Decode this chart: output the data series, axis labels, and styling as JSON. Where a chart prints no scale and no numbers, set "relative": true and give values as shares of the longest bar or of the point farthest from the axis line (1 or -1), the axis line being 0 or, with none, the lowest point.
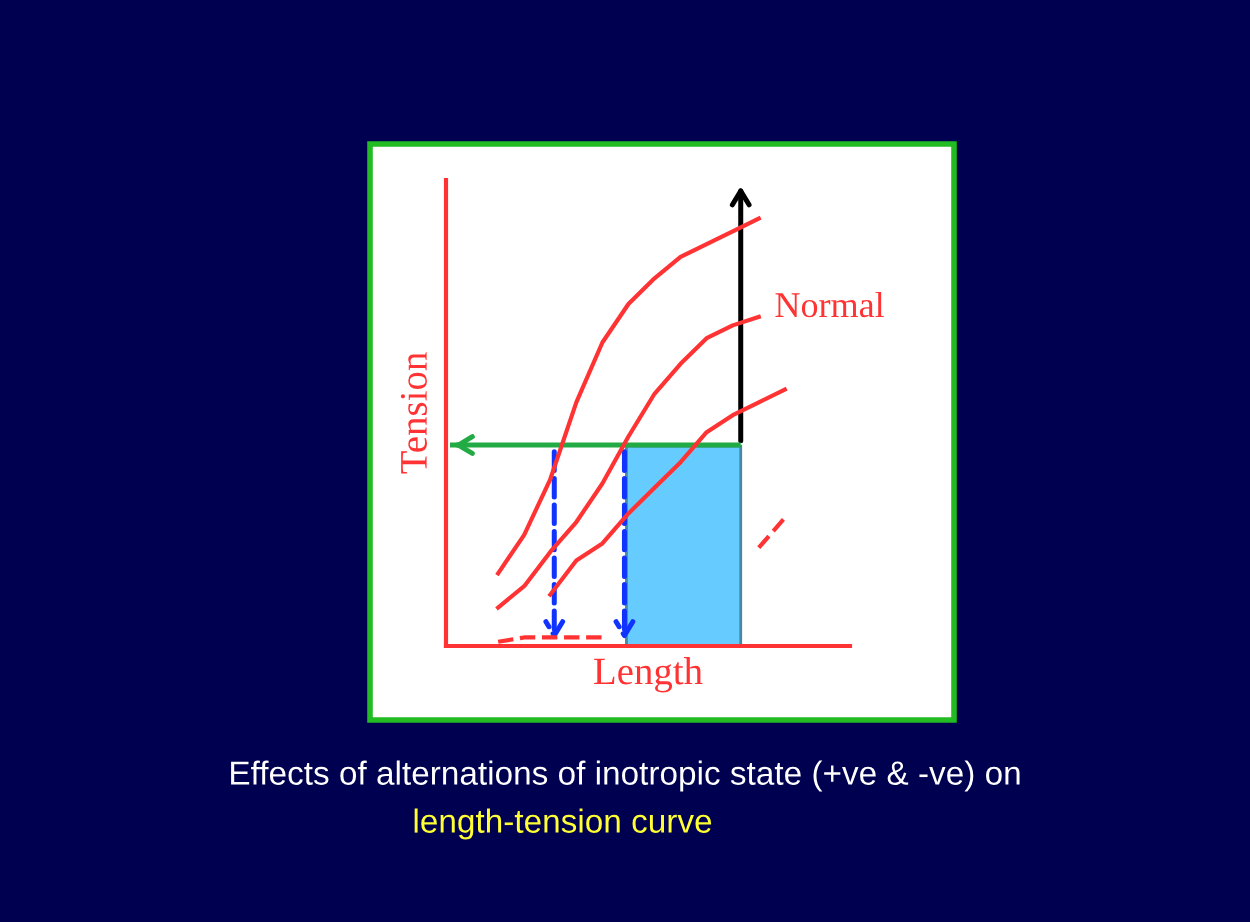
{
  "chart_data": {
    "type": "line",
    "relative": true,
    "xlabel": "Length",
    "ylabel": "Tension",
    "categories": [
      null,
      null,
      null,
      null,
      null,
      null,
      null,
      null,
      null,
      null,
      null,
      null,
      null
    ],
    "series": [
      {
        "color": "#ff3333",
        "line_style": "solid",
        "values": [
          null,
          0.17,
          0.26,
          0.39,
          0.57,
          0.71,
          0.8,
          0.86,
          0.91,
          0.94,
          0.97,
          1.0,
          null
        ]
      },
      {
        "name": "Normal",
        "color": "#ff3333",
        "line_style": "solid",
        "values": [
          null,
          0.09,
          0.14,
          0.22,
          0.29,
          0.38,
          0.49,
          0.59,
          0.66,
          0.72,
          0.75,
          0.77,
          null
        ]
      },
      {
        "color": "#ff3333",
        "line_style": "solid",
        "values": [
          null,
          null,
          null,
          0.12,
          0.2,
          0.24,
          0.31,
          0.37,
          0.43,
          0.5,
          0.54,
          0.57,
          0.6
        ]
      },
      {
        "color": "#ff3333",
        "line_style": "dashed",
        "values": [
          null,
          0.01,
          0.02,
          0.02,
          0.02,
          0.02,
          null,
          null,
          null,
          null,
          null,
          0.23,
          0.3
        ]
      }
    ],
    "ref_lines": [
      {
        "axis": "y",
        "value": 0.47,
        "color": "#22aa44"
      }
    ],
    "annotations": [
      "Effects of alternations of inotropic state (+ve & -ve) on",
      "length-tension curve"
    ]
  }
}
